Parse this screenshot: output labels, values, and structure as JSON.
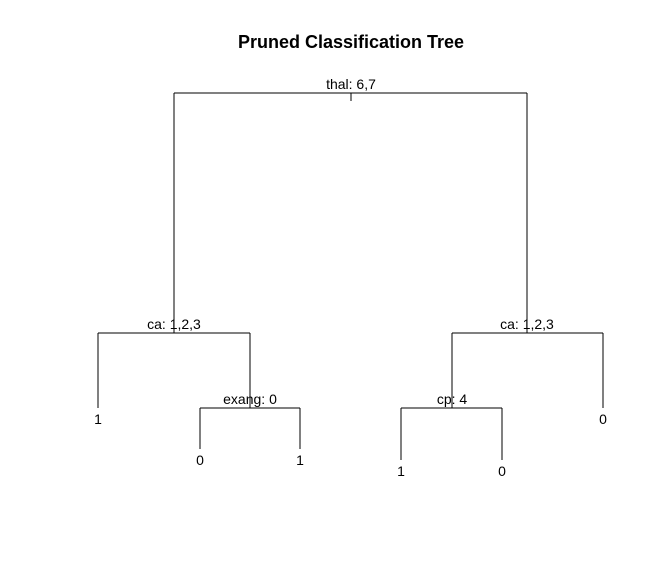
{
  "title": "Pruned Classification Tree",
  "nodes": {
    "root": {
      "split": "thal: 6,7"
    },
    "left": {
      "split": "ca: 1,2,3"
    },
    "left_right": {
      "split": "exang: 0"
    },
    "right": {
      "split": "ca: 1,2,3"
    },
    "right_left": {
      "split": "cp: 4"
    }
  },
  "leaves": {
    "left_left": "1",
    "left_right_left": "0",
    "left_right_right": "1",
    "right_left_left": "1",
    "right_left_right": "0",
    "right_right": "0"
  }
}
